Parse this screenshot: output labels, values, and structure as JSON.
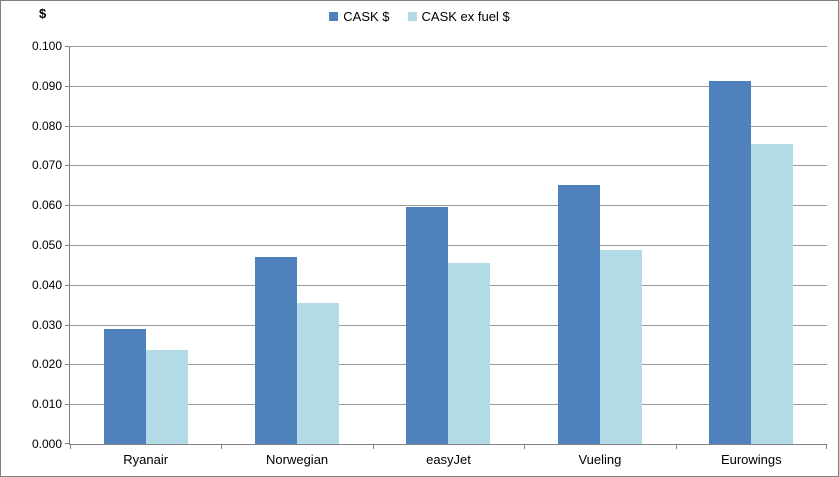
{
  "chart_data": {
    "type": "bar",
    "title": "",
    "categories": [
      "Ryanair",
      "Norwegian",
      "easyJet",
      "Vueling",
      "Eurowings"
    ],
    "series": [
      {
        "name": "CASK $",
        "color": "#4F81BD",
        "values": [
          0.0288,
          0.0471,
          0.0595,
          0.065,
          0.0913
        ]
      },
      {
        "name": "CASK ex fuel $",
        "color": "#B3DAE7",
        "values": [
          0.0235,
          0.0355,
          0.0455,
          0.0488,
          0.0755
        ]
      }
    ],
    "y_axis": {
      "title": "$",
      "min": 0,
      "max": 0.1,
      "step": 0.01,
      "tick_labels": [
        "0.000",
        "0.010",
        "0.020",
        "0.030",
        "0.040",
        "0.050",
        "0.060",
        "0.070",
        "0.080",
        "0.090",
        "0.100"
      ]
    },
    "x_axis": {
      "title": ""
    },
    "ylim": [
      0,
      0.1
    ],
    "legend_position": "top",
    "grid": true
  },
  "colors": {
    "background": "#FFFFFF",
    "border": "#7F7F7F",
    "axis": "#808080",
    "gridline": "#9B9B9B",
    "text": "#000000"
  }
}
